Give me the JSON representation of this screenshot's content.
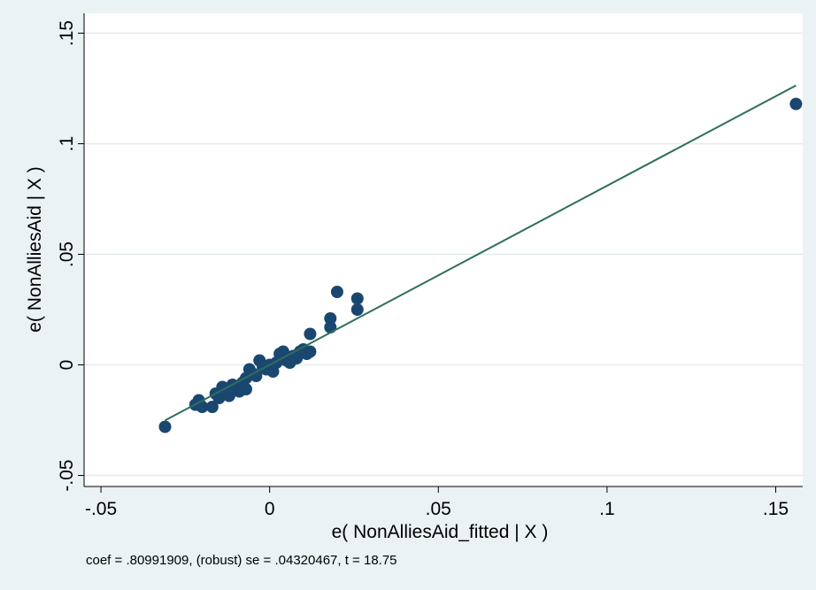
{
  "chart_data": {
    "type": "scatter",
    "xlabel": "e( NonAlliesAid_fitted | X )",
    "ylabel": "e( NonAlliesAid | X )",
    "note": "coef = .80991909, (robust) se = .04320467, t = 18.75",
    "xlim": [
      -0.055,
      0.158
    ],
    "ylim": [
      -0.055,
      0.159
    ],
    "x_ticks": [
      -0.05,
      0,
      0.05,
      0.1,
      0.15
    ],
    "x_tick_labels": [
      "-.05",
      "0",
      ".05",
      ".1",
      ".15"
    ],
    "y_ticks": [
      -0.05,
      0,
      0.05,
      0.1,
      0.15
    ],
    "y_tick_labels": [
      "-.05",
      "0",
      ".05",
      ".1",
      ".15"
    ],
    "grid": "horizontal",
    "colors": {
      "background": "#eaf2f3",
      "plot_area": "#ffffff",
      "marker": "#1a476f",
      "fit_line": "#2e6e5e",
      "grid": "#e4ecee"
    },
    "fit_line": {
      "slope": 0.80991909,
      "intercept": 0.0,
      "x_range": [
        -0.031,
        0.156
      ]
    },
    "points": [
      [
        -0.031,
        -0.028
      ],
      [
        -0.022,
        -0.018
      ],
      [
        -0.021,
        -0.016
      ],
      [
        -0.02,
        -0.019
      ],
      [
        -0.017,
        -0.019
      ],
      [
        -0.016,
        -0.013
      ],
      [
        -0.015,
        -0.015
      ],
      [
        -0.014,
        -0.01
      ],
      [
        -0.013,
        -0.012
      ],
      [
        -0.012,
        -0.014
      ],
      [
        -0.011,
        -0.009
      ],
      [
        -0.01,
        -0.011
      ],
      [
        -0.009,
        -0.012
      ],
      [
        -0.008,
        -0.008
      ],
      [
        -0.007,
        -0.011
      ],
      [
        -0.007,
        -0.006
      ],
      [
        -0.006,
        -0.002
      ],
      [
        -0.005,
        -0.004
      ],
      [
        -0.004,
        -0.005
      ],
      [
        -0.003,
        0.002
      ],
      [
        -0.002,
        -0.001
      ],
      [
        -0.001,
        -0.002
      ],
      [
        0.0,
        0.0
      ],
      [
        0.001,
        -0.003
      ],
      [
        0.002,
        0.001
      ],
      [
        0.003,
        0.005
      ],
      [
        0.004,
        0.006
      ],
      [
        0.005,
        0.002
      ],
      [
        0.006,
        0.001
      ],
      [
        0.007,
        0.004
      ],
      [
        0.008,
        0.003
      ],
      [
        0.009,
        0.006
      ],
      [
        0.01,
        0.007
      ],
      [
        0.011,
        0.005
      ],
      [
        0.012,
        0.006
      ],
      [
        0.012,
        0.014
      ],
      [
        0.018,
        0.021
      ],
      [
        0.018,
        0.017
      ],
      [
        0.02,
        0.033
      ],
      [
        0.026,
        0.03
      ],
      [
        0.026,
        0.025
      ],
      [
        0.156,
        0.118
      ]
    ]
  }
}
